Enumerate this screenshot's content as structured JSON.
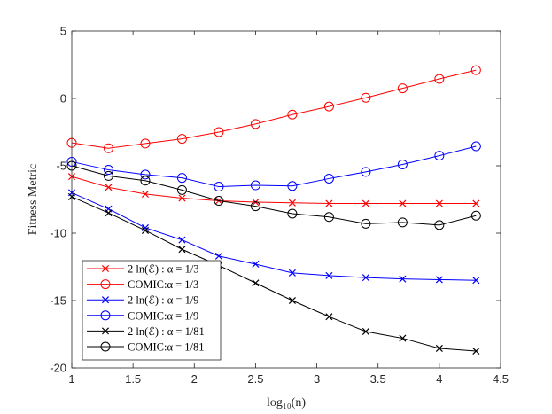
{
  "chart_data": {
    "type": "line",
    "title": "",
    "xlabel": "log₁₀(n)",
    "ylabel": "Fitness Metric",
    "xlim": [
      1,
      4.5
    ],
    "ylim": [
      -20,
      5
    ],
    "xticks": [
      1,
      1.5,
      2,
      2.5,
      3,
      3.5,
      4,
      4.5
    ],
    "xtick_labels": [
      "1",
      "1.5",
      "2",
      "2.5",
      "3",
      "3.5",
      "4",
      "4.5"
    ],
    "yticks": [
      -20,
      -15,
      -10,
      -5,
      0,
      5
    ],
    "ytick_labels": [
      "-20",
      "-15",
      "-10",
      "-5",
      "0",
      "5"
    ],
    "grid": false,
    "legend_position": "bottom-left",
    "x": [
      1,
      1.3,
      1.6,
      1.9,
      2.2,
      2.5,
      2.8,
      3.1,
      3.4,
      3.7,
      4.0,
      4.3
    ],
    "series": [
      {
        "name": "2 ln(ℰ) : α = 1/3",
        "color": "#ff0000",
        "marker": "x",
        "values": [
          -5.8,
          -6.6,
          -7.1,
          -7.4,
          -7.6,
          -7.7,
          -7.75,
          -7.8,
          -7.8,
          -7.8,
          -7.8,
          -7.8
        ]
      },
      {
        "name": "COMIC:α = 1/3",
        "color": "#ff0000",
        "marker": "o",
        "values": [
          -3.3,
          -3.7,
          -3.35,
          -3.0,
          -2.5,
          -1.9,
          -1.2,
          -0.6,
          0.05,
          0.75,
          1.45,
          2.1
        ]
      },
      {
        "name": "2 ln(ℰ) : α = 1/9",
        "color": "#0000ff",
        "marker": "x",
        "values": [
          -7.0,
          -8.2,
          -9.6,
          -10.5,
          -11.7,
          -12.3,
          -12.95,
          -13.15,
          -13.3,
          -13.4,
          -13.45,
          -13.5
        ]
      },
      {
        "name": "COMIC:α = 1/9",
        "color": "#0000ff",
        "marker": "o",
        "values": [
          -4.7,
          -5.3,
          -5.65,
          -5.9,
          -6.55,
          -6.45,
          -6.5,
          -5.95,
          -5.45,
          -4.9,
          -4.25,
          -3.55
        ]
      },
      {
        "name": "2 ln(ℰ) : α = 1/81",
        "color": "#000000",
        "marker": "x",
        "values": [
          -7.3,
          -8.5,
          -9.8,
          -11.2,
          -12.4,
          -13.7,
          -15.0,
          -16.2,
          -17.3,
          -17.8,
          -18.55,
          -18.75
        ]
      },
      {
        "name": "COMIC:α = 1/81",
        "color": "#000000",
        "marker": "o",
        "values": [
          -5.0,
          -5.75,
          -6.1,
          -6.8,
          -7.6,
          -8.0,
          -8.55,
          -8.8,
          -9.3,
          -9.2,
          -9.4,
          -8.7
        ]
      }
    ]
  }
}
